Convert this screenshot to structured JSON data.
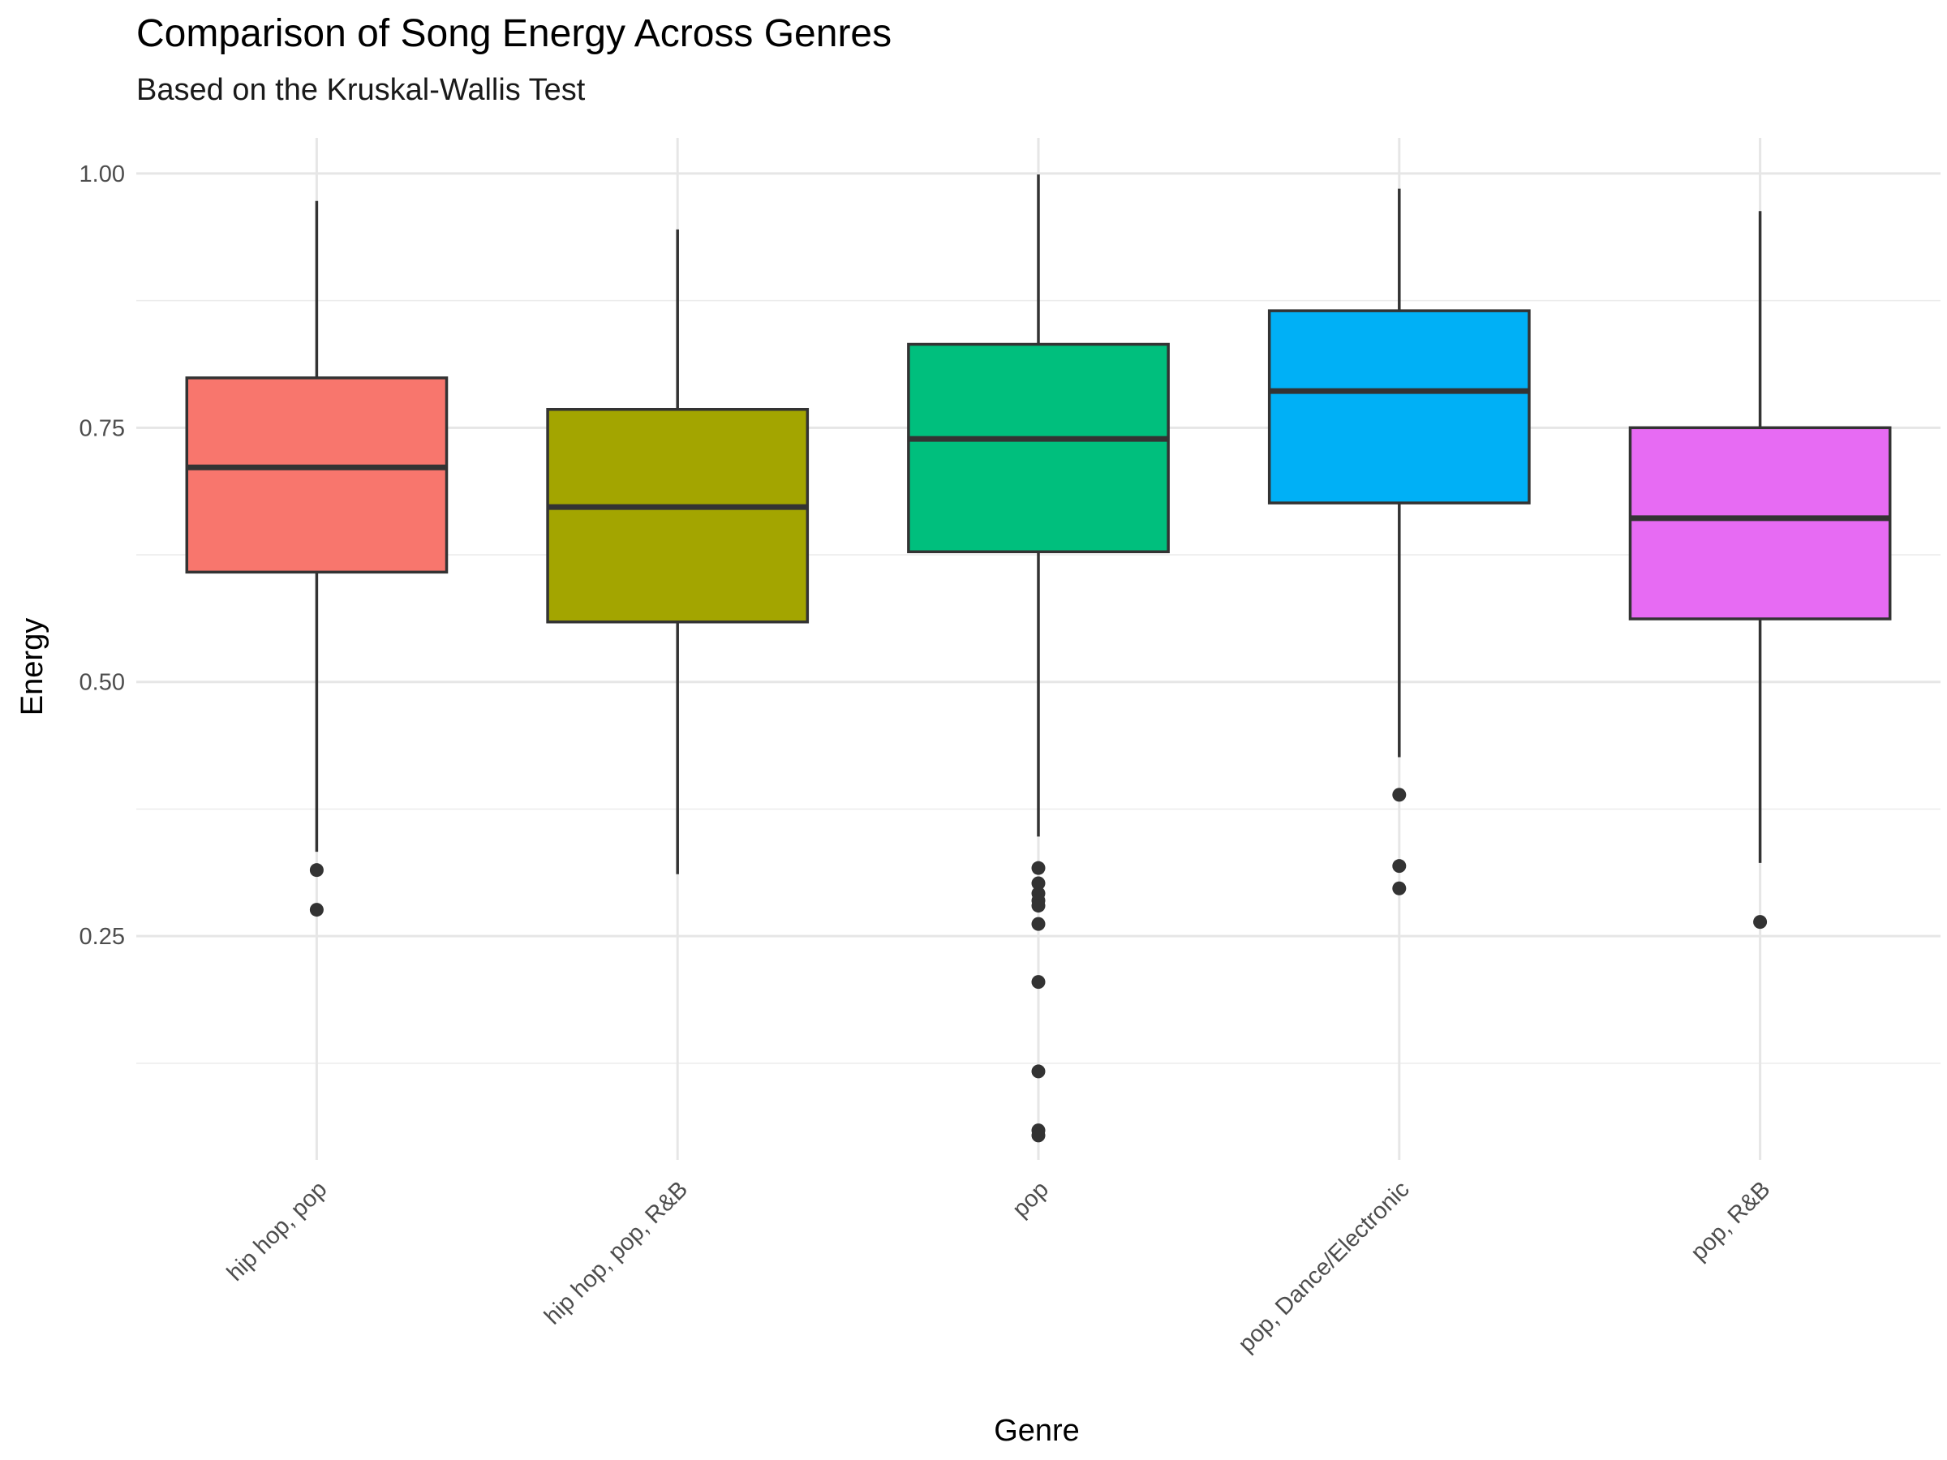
{
  "chart_data": {
    "type": "boxplot",
    "title": "Comparison of Song Energy Across Genres",
    "subtitle": "Based on the Kruskal-Wallis Test",
    "xlabel": "Genre",
    "ylabel": "Energy",
    "ylim": [
      0.03,
      1.035
    ],
    "yticks": [
      0.25,
      0.5,
      0.75,
      1.0
    ],
    "ytick_labels": [
      "0.25",
      "0.50",
      "0.75",
      "1.00"
    ],
    "grid": true,
    "legend": "none",
    "categories": [
      "hip hop, pop",
      "hip hop, pop, R&B",
      "pop",
      "pop, Dance/Electronic",
      "pop, R&B"
    ],
    "boxes": [
      {
        "category": "hip hop, pop",
        "color": "#F8766D",
        "whisker_low": 0.333,
        "q1": 0.608,
        "median": 0.711,
        "q3": 0.799,
        "whisker_high": 0.973,
        "outliers": [
          0.315,
          0.276
        ]
      },
      {
        "category": "hip hop, pop, R&B",
        "color": "#A3A500",
        "whisker_low": 0.311,
        "q1": 0.559,
        "median": 0.672,
        "q3": 0.768,
        "whisker_high": 0.945,
        "outliers": []
      },
      {
        "category": "pop",
        "color": "#00BF7D",
        "whisker_low": 0.348,
        "q1": 0.628,
        "median": 0.739,
        "q3": 0.832,
        "whisker_high": 0.999,
        "outliers": [
          0.317,
          0.302,
          0.292,
          0.285,
          0.28,
          0.262,
          0.205,
          0.117,
          0.059,
          0.054
        ]
      },
      {
        "category": "pop, Dance/Electronic",
        "color": "#00B0F6",
        "whisker_low": 0.426,
        "q1": 0.676,
        "median": 0.786,
        "q3": 0.865,
        "whisker_high": 0.985,
        "outliers": [
          0.389,
          0.319,
          0.297
        ]
      },
      {
        "category": "pop, R&B",
        "color": "#E76BF3",
        "whisker_low": 0.322,
        "q1": 0.562,
        "median": 0.661,
        "q3": 0.75,
        "whisker_high": 0.963,
        "outliers": [
          0.264
        ]
      }
    ]
  }
}
